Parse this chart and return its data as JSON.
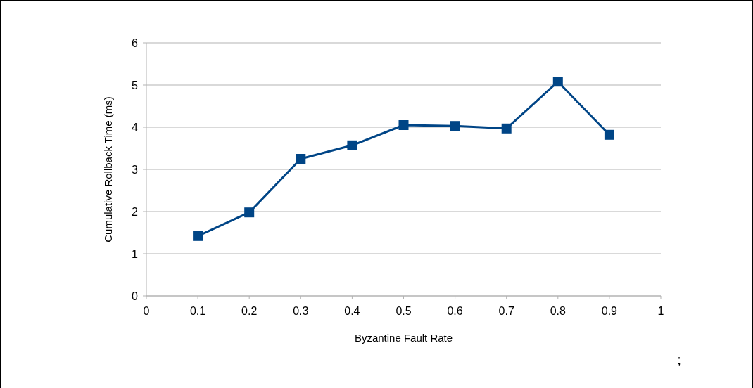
{
  "chart_data": {
    "type": "line",
    "xlabel": "Byzantine Fault Rate",
    "ylabel": "Cumulative Rollback Time (ms)",
    "x": [
      0.1,
      0.2,
      0.3,
      0.4,
      0.5,
      0.6,
      0.7,
      0.8,
      0.9
    ],
    "series": [
      {
        "color": "#004586",
        "values": [
          1.42,
          1.98,
          3.25,
          3.57,
          4.05,
          4.03,
          3.97,
          5.08,
          3.82
        ]
      }
    ],
    "xlim": [
      0,
      1
    ],
    "xticks": [
      0,
      0.1,
      0.2,
      0.3,
      0.4,
      0.5,
      0.6,
      0.7,
      0.8,
      0.9,
      1
    ],
    "ylim": [
      0,
      6
    ],
    "yticks": [
      0,
      1,
      2,
      3,
      4,
      5,
      6
    ],
    "grid": "y",
    "marker": "square",
    "line_style": "solid",
    "annotations": [
      ";"
    ]
  }
}
